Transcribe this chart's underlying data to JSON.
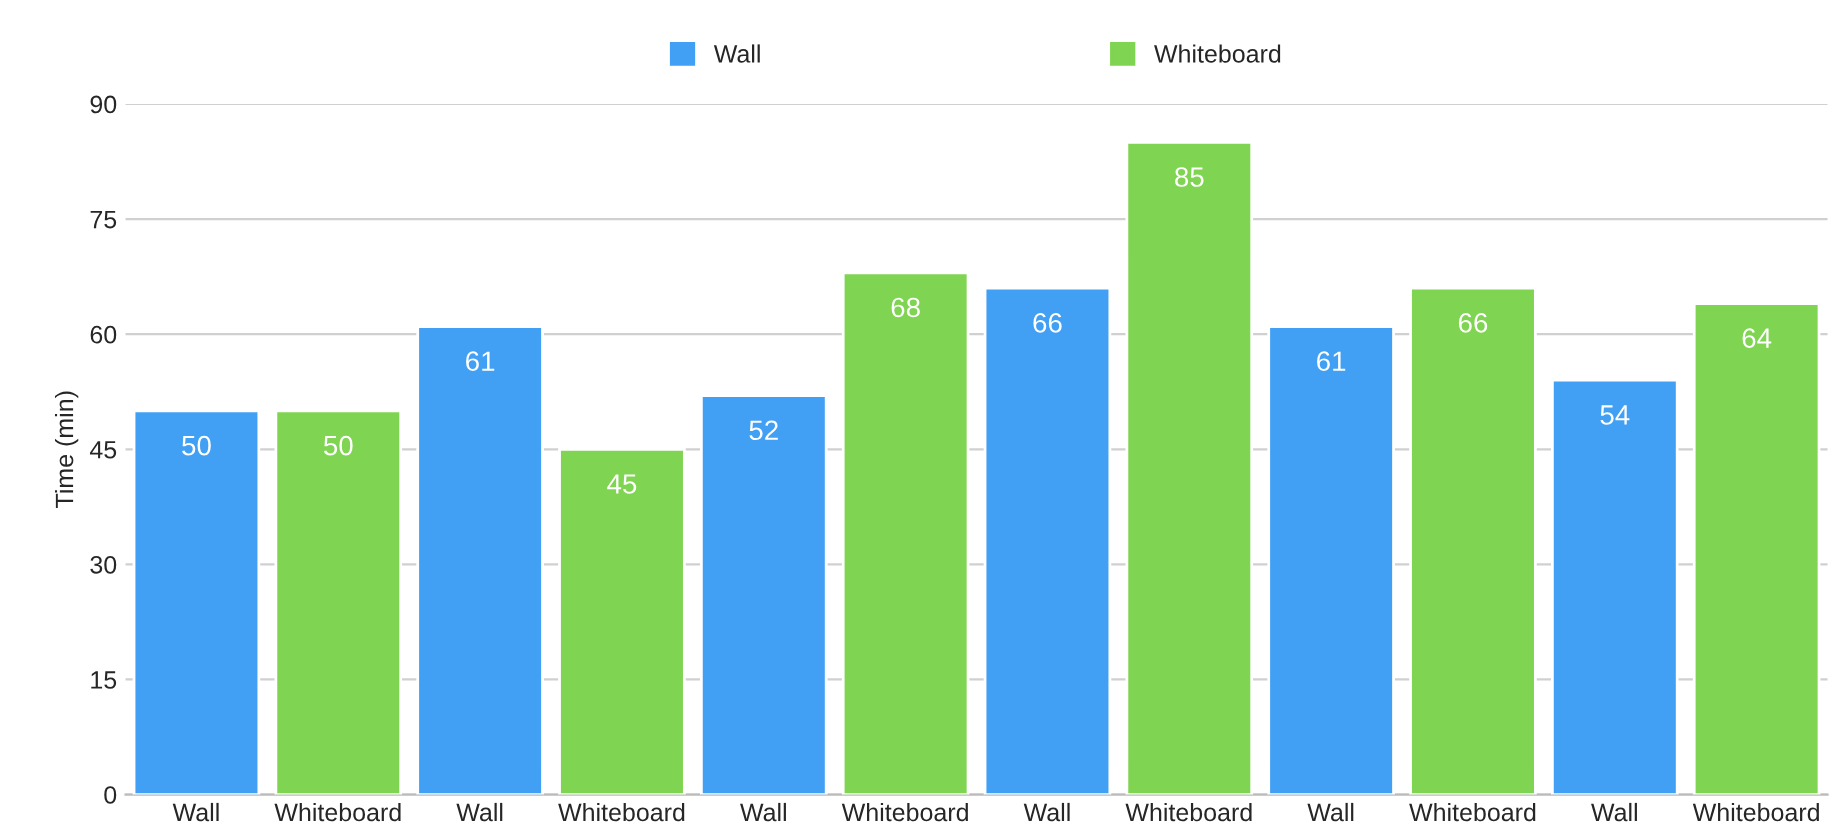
{
  "chart_data": {
    "type": "bar",
    "ylabel": "Time (min)",
    "categories": [
      "Wall",
      "Whiteboard",
      "Wall",
      "Whiteboard",
      "Wall",
      "Whiteboard",
      "Wall",
      "Whiteboard",
      "Wall",
      "Whiteboard",
      "Wall",
      "Whiteboard"
    ],
    "series": [
      {
        "name": "Wall",
        "color": "#42a0f4",
        "values": [
          50,
          null,
          61,
          null,
          52,
          null,
          66,
          null,
          61,
          null,
          54,
          null
        ]
      },
      {
        "name": "Whiteboard",
        "color": "#7fd451",
        "values": [
          null,
          50,
          null,
          45,
          null,
          68,
          null,
          85,
          null,
          66,
          null,
          64
        ]
      }
    ],
    "ylim": [
      0,
      90
    ],
    "yticks": [
      0,
      15,
      30,
      45,
      60,
      75,
      90
    ],
    "grid": "y",
    "legend": "top",
    "data_labels": true
  }
}
